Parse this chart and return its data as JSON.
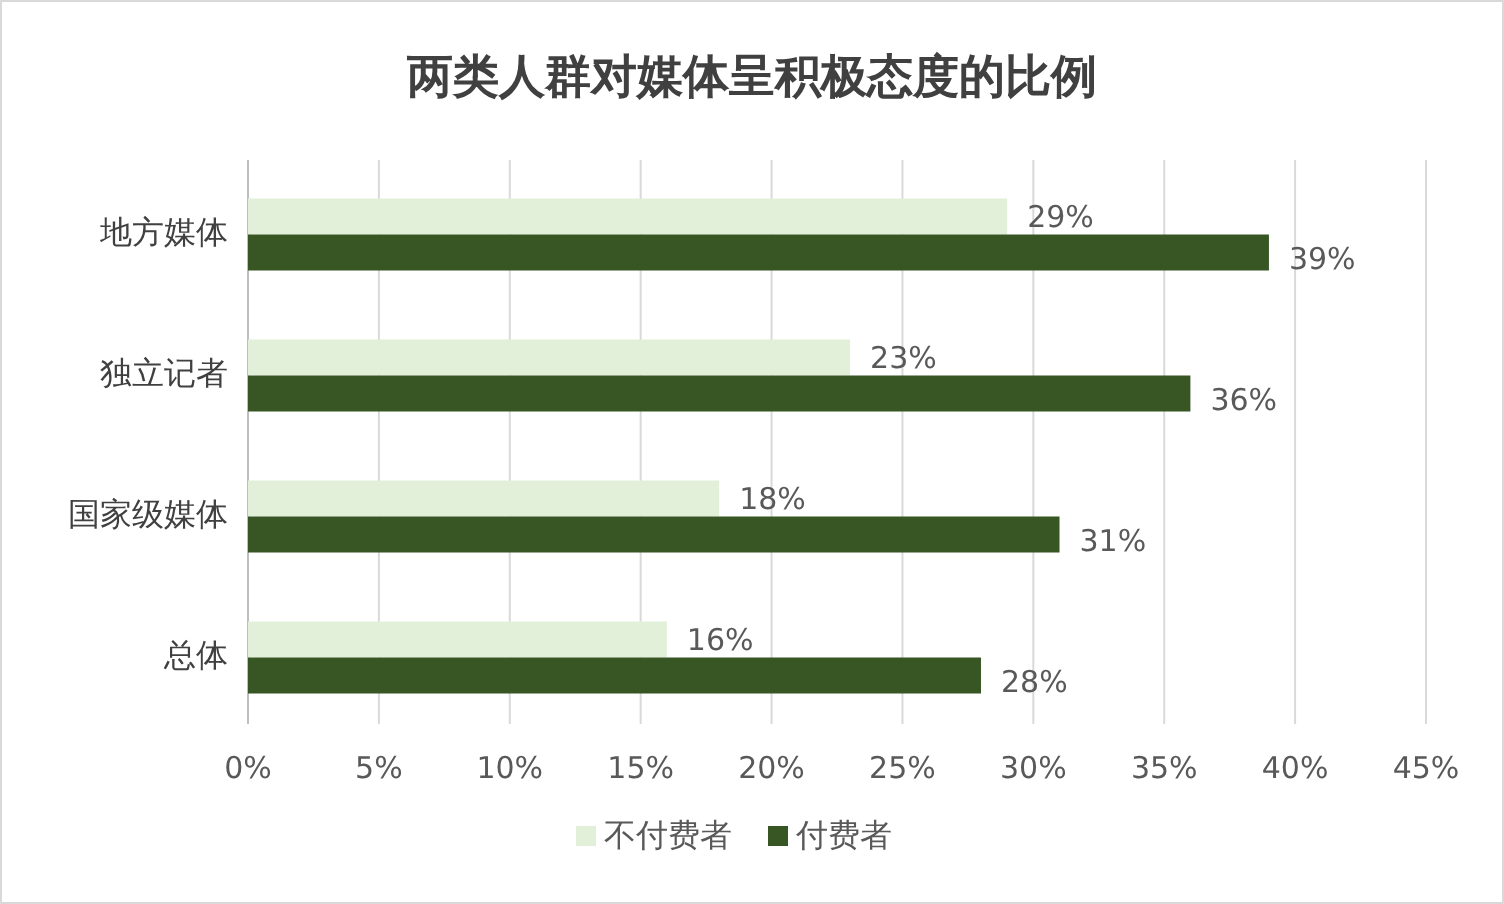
{
  "chart_data": {
    "type": "bar",
    "orientation": "horizontal",
    "title": "两类人群对媒体呈积极态度的比例",
    "categories": [
      "地方媒体",
      "独立记者",
      "国家级媒体",
      "总体"
    ],
    "series": [
      {
        "name": "不付费者",
        "color": "#e2efd9",
        "values": [
          29,
          23,
          18,
          16
        ],
        "value_labels": [
          "29%",
          "23%",
          "18%",
          "16%"
        ]
      },
      {
        "name": "付费者",
        "color": "#375623",
        "values": [
          39,
          36,
          31,
          28
        ],
        "value_labels": [
          "39%",
          "36%",
          "31%",
          "28%"
        ]
      }
    ],
    "xlim": [
      0,
      45
    ],
    "xticks": [
      {
        "value": 0,
        "label": "0%"
      },
      {
        "value": 5,
        "label": "5%"
      },
      {
        "value": 10,
        "label": "10%"
      },
      {
        "value": 15,
        "label": "15%"
      },
      {
        "value": 20,
        "label": "20%"
      },
      {
        "value": 25,
        "label": "25%"
      },
      {
        "value": 30,
        "label": "30%"
      },
      {
        "value": 35,
        "label": "35%"
      },
      {
        "value": 40,
        "label": "40%"
      },
      {
        "value": 45,
        "label": "45%"
      }
    ],
    "grid": "x",
    "legend": "bottom"
  }
}
